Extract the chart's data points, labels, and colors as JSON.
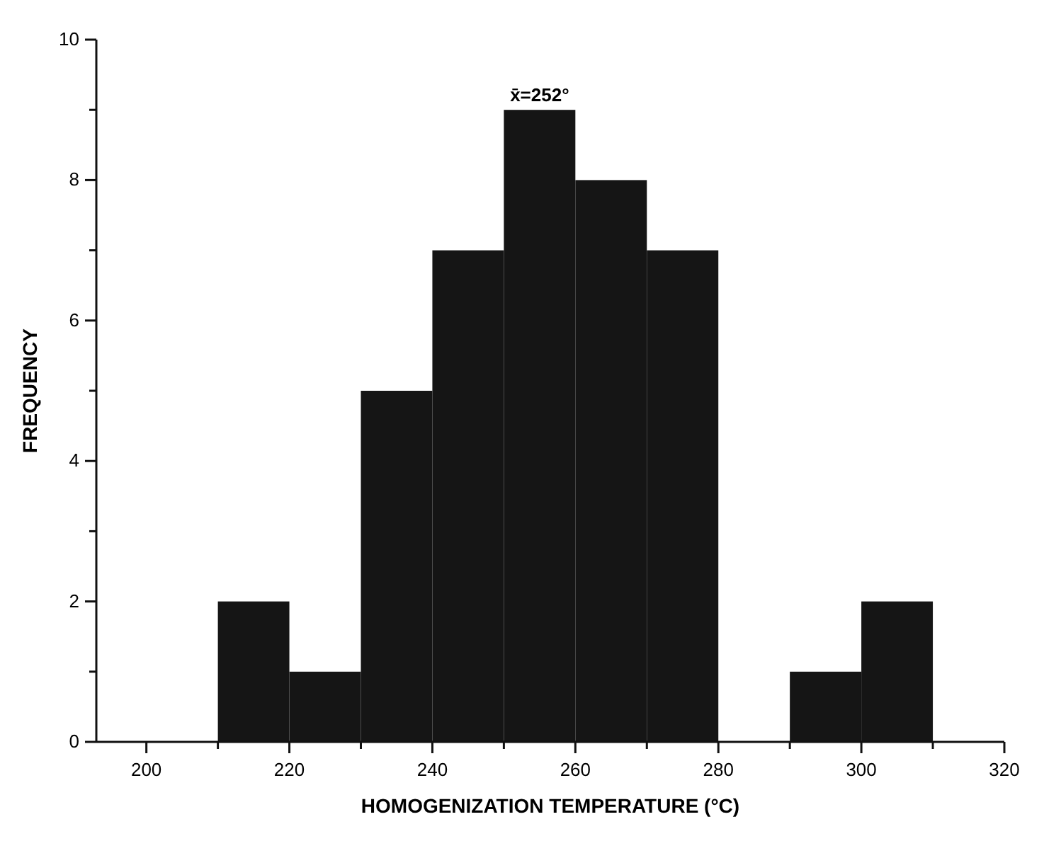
{
  "chart_data": {
    "type": "histogram",
    "xlabel": "HOMOGENIZATION TEMPERATURE (°C)",
    "ylabel": "FREQUENCY",
    "bins": [
      210,
      220,
      230,
      240,
      250,
      260,
      270,
      280,
      290,
      300,
      310
    ],
    "values": [
      2,
      1,
      5,
      7,
      9,
      8,
      7,
      0,
      1,
      2
    ],
    "color": "#151515",
    "xlim": [
      193,
      320
    ],
    "xticks": [
      200,
      {
        "value": 210,
        "label": null
      },
      220,
      {
        "value": 230,
        "label": null
      },
      240,
      {
        "value": 250,
        "label": null
      },
      260,
      {
        "value": 270,
        "label": null
      },
      280,
      {
        "value": 290,
        "label": null
      },
      300,
      {
        "value": 310,
        "label": null
      },
      320
    ],
    "ylim": [
      0,
      10
    ],
    "yticks": [
      0,
      {
        "value": 1,
        "label": null
      },
      2,
      {
        "value": 3,
        "label": null
      },
      4,
      {
        "value": 5,
        "label": null
      },
      6,
      {
        "value": 7,
        "label": null
      },
      8,
      {
        "value": 9,
        "label": null
      },
      10
    ],
    "annotations": [
      {
        "text": "x̄=252°",
        "x": 255,
        "y": 9
      }
    ],
    "grid": false
  }
}
